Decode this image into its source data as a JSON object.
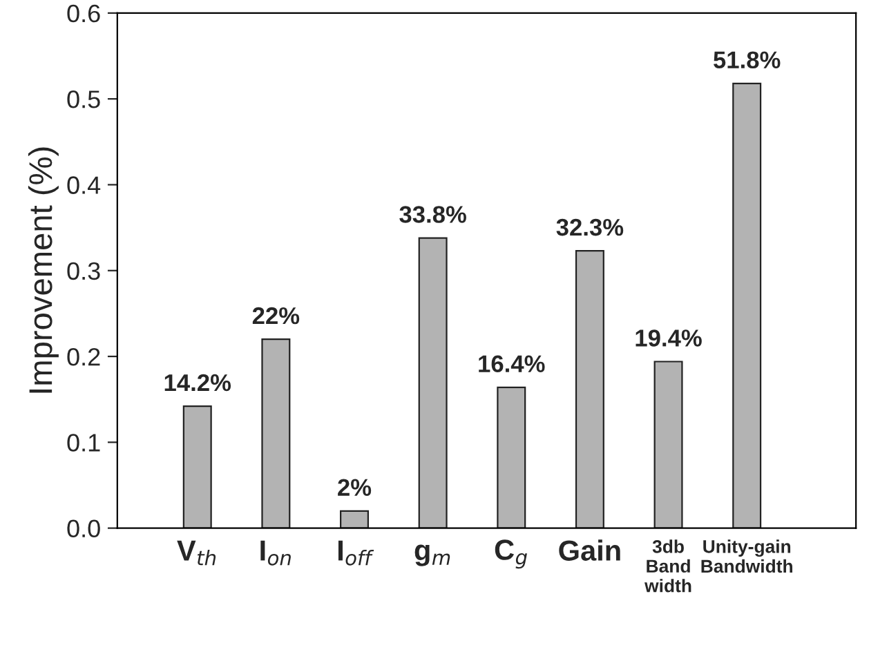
{
  "chart_data": {
    "type": "bar",
    "ylabel": "Improvement (%)",
    "categories": [
      "V$_{th}$",
      "I$_{on}$",
      "I$_{off}$",
      "g$_{m}$",
      "C$_{g}$",
      "Gain",
      "3db\nBand\nwidth",
      "Unity-gain\nBandwidth"
    ],
    "values": [
      0.142,
      0.22,
      0.02,
      0.338,
      0.164,
      0.323,
      0.194,
      0.518
    ],
    "value_labels": [
      "14.2%",
      "22%",
      "2%",
      "33.8%",
      "16.4%",
      "32.3%",
      "19.4%",
      "51.8%"
    ],
    "color": "#b3b3b3",
    "ylim": [
      0,
      0.6
    ],
    "yticks": [
      {
        "value": 0,
        "label": "0.0"
      },
      0.1,
      0.2,
      0.3,
      0.4,
      0.5,
      0.6
    ],
    "grid": false
  }
}
